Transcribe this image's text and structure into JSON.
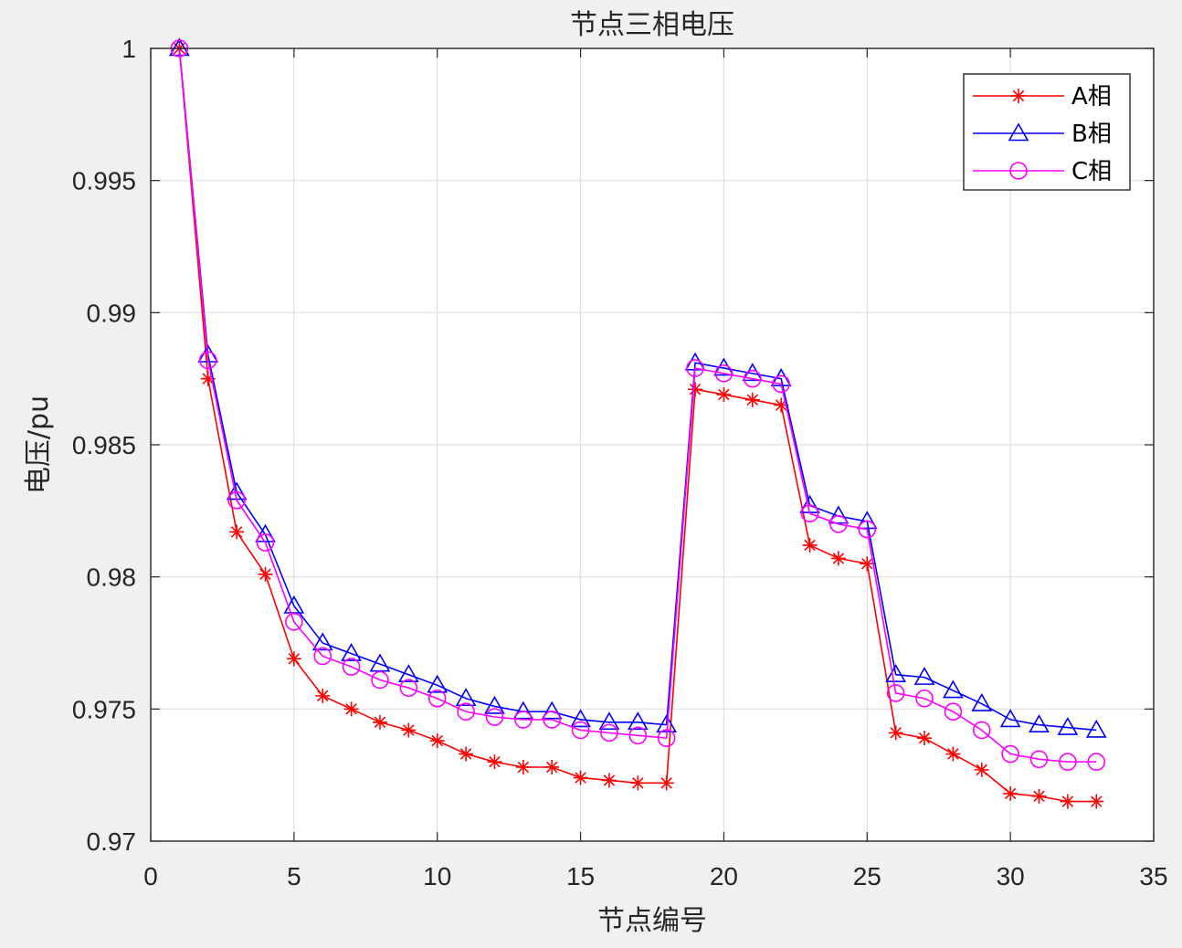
{
  "chart_data": {
    "type": "line",
    "title": "节点三相电压",
    "xlabel": "节点编号",
    "ylabel": "电压/pu",
    "xlim": [
      0,
      35
    ],
    "ylim": [
      0.97,
      1.0
    ],
    "xticks": [
      0,
      5,
      10,
      15,
      20,
      25,
      30,
      35
    ],
    "yticks": [
      0.97,
      0.975,
      0.98,
      0.985,
      0.99,
      0.995,
      1
    ],
    "xtick_labels": [
      "0",
      "5",
      "10",
      "15",
      "20",
      "25",
      "30",
      "35"
    ],
    "ytick_labels": [
      "0.97",
      "0.975",
      "0.98",
      "0.985",
      "0.99",
      "0.995",
      "1"
    ],
    "grid": true,
    "legend_position": "top-right",
    "x": [
      1,
      2,
      3,
      4,
      5,
      6,
      7,
      8,
      9,
      10,
      11,
      12,
      13,
      14,
      15,
      16,
      17,
      18,
      19,
      20,
      21,
      22,
      23,
      24,
      25,
      26,
      27,
      28,
      29,
      30,
      31,
      32,
      33
    ],
    "series": [
      {
        "name": "A相",
        "color": "#ff0000",
        "marker": "asterisk",
        "values": [
          1.0,
          0.9875,
          0.9817,
          0.9801,
          0.9769,
          0.9755,
          0.975,
          0.9745,
          0.9742,
          0.9738,
          0.9733,
          0.973,
          0.9728,
          0.9728,
          0.9724,
          0.9723,
          0.9722,
          0.9722,
          0.9871,
          0.9869,
          0.9867,
          0.9865,
          0.9812,
          0.9807,
          0.9805,
          0.9741,
          0.9739,
          0.9733,
          0.9727,
          0.9718,
          0.9717,
          0.9715,
          0.9715
        ]
      },
      {
        "name": "B相",
        "color": "#0000ff",
        "marker": "triangle",
        "values": [
          1.0,
          0.9884,
          0.9832,
          0.9816,
          0.9789,
          0.9775,
          0.9771,
          0.9767,
          0.9763,
          0.9759,
          0.9754,
          0.9751,
          0.9749,
          0.9749,
          0.9746,
          0.9745,
          0.9745,
          0.9744,
          0.9881,
          0.9879,
          0.9877,
          0.9875,
          0.9827,
          0.9823,
          0.9821,
          0.9763,
          0.9762,
          0.9757,
          0.9752,
          0.9746,
          0.9744,
          0.9743,
          0.9742
        ]
      },
      {
        "name": "C相",
        "color": "#ff00ff",
        "marker": "circle",
        "values": [
          1.0,
          0.9882,
          0.9829,
          0.9813,
          0.9783,
          0.977,
          0.9766,
          0.9761,
          0.9758,
          0.9754,
          0.9749,
          0.9747,
          0.9746,
          0.9746,
          0.9742,
          0.9741,
          0.974,
          0.9739,
          0.9879,
          0.9877,
          0.9875,
          0.9873,
          0.9824,
          0.982,
          0.9818,
          0.9756,
          0.9754,
          0.9749,
          0.9742,
          0.9733,
          0.9731,
          0.973,
          0.973
        ]
      }
    ]
  }
}
